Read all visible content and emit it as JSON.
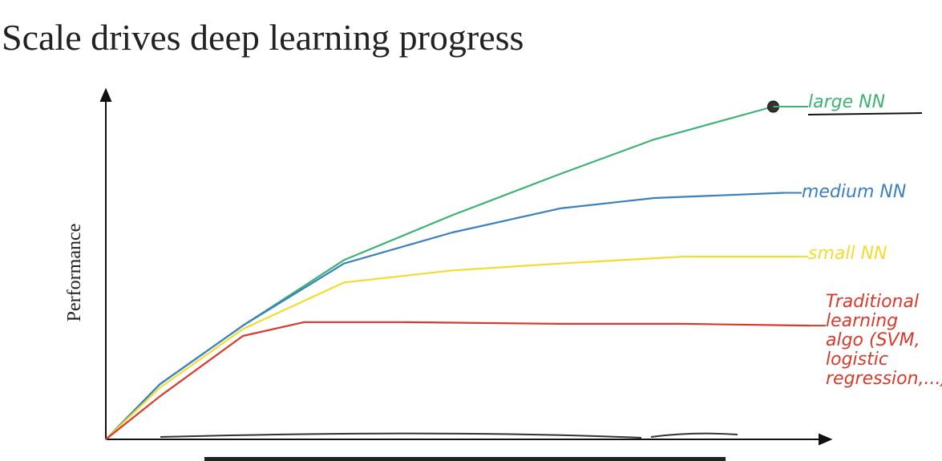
{
  "chart_data": {
    "type": "line",
    "title": "Scale drives deep learning progress",
    "y_label": "Performance",
    "xlim": [
      0,
      10
    ],
    "ylim": [
      0,
      10
    ],
    "series": [
      {
        "name": "large NN",
        "color": "#3cb371",
        "x": [
          0,
          0.75,
          1.9,
          3.3,
          4.8,
          6.3,
          7.6,
          9.25
        ],
        "values": [
          0,
          1.6,
          3.3,
          5.2,
          6.5,
          7.7,
          8.7,
          9.65
        ]
      },
      {
        "name": "medium NN",
        "color": "#3a7fc1",
        "x": [
          0,
          0.75,
          1.9,
          3.3,
          4.8,
          6.3,
          7.6,
          9.4
        ],
        "values": [
          0,
          1.6,
          3.3,
          5.1,
          6.0,
          6.7,
          7.0,
          7.15
        ]
      },
      {
        "name": "small NN",
        "color": "#f2dc2e",
        "x": [
          0,
          0.75,
          1.9,
          3.3,
          4.8,
          6.3,
          8.0,
          9.6
        ],
        "values": [
          0,
          1.5,
          3.2,
          4.55,
          4.9,
          5.1,
          5.3,
          5.3
        ]
      },
      {
        "name": "Traditional learning algo (SVM, logistic regression,...)",
        "color": "#d93a2b",
        "x": [
          0,
          0.75,
          1.9,
          2.75,
          4.1,
          6.3,
          8.0,
          9.75
        ],
        "values": [
          0,
          1.25,
          3.0,
          3.4,
          3.4,
          3.35,
          3.35,
          3.3
        ]
      }
    ]
  }
}
